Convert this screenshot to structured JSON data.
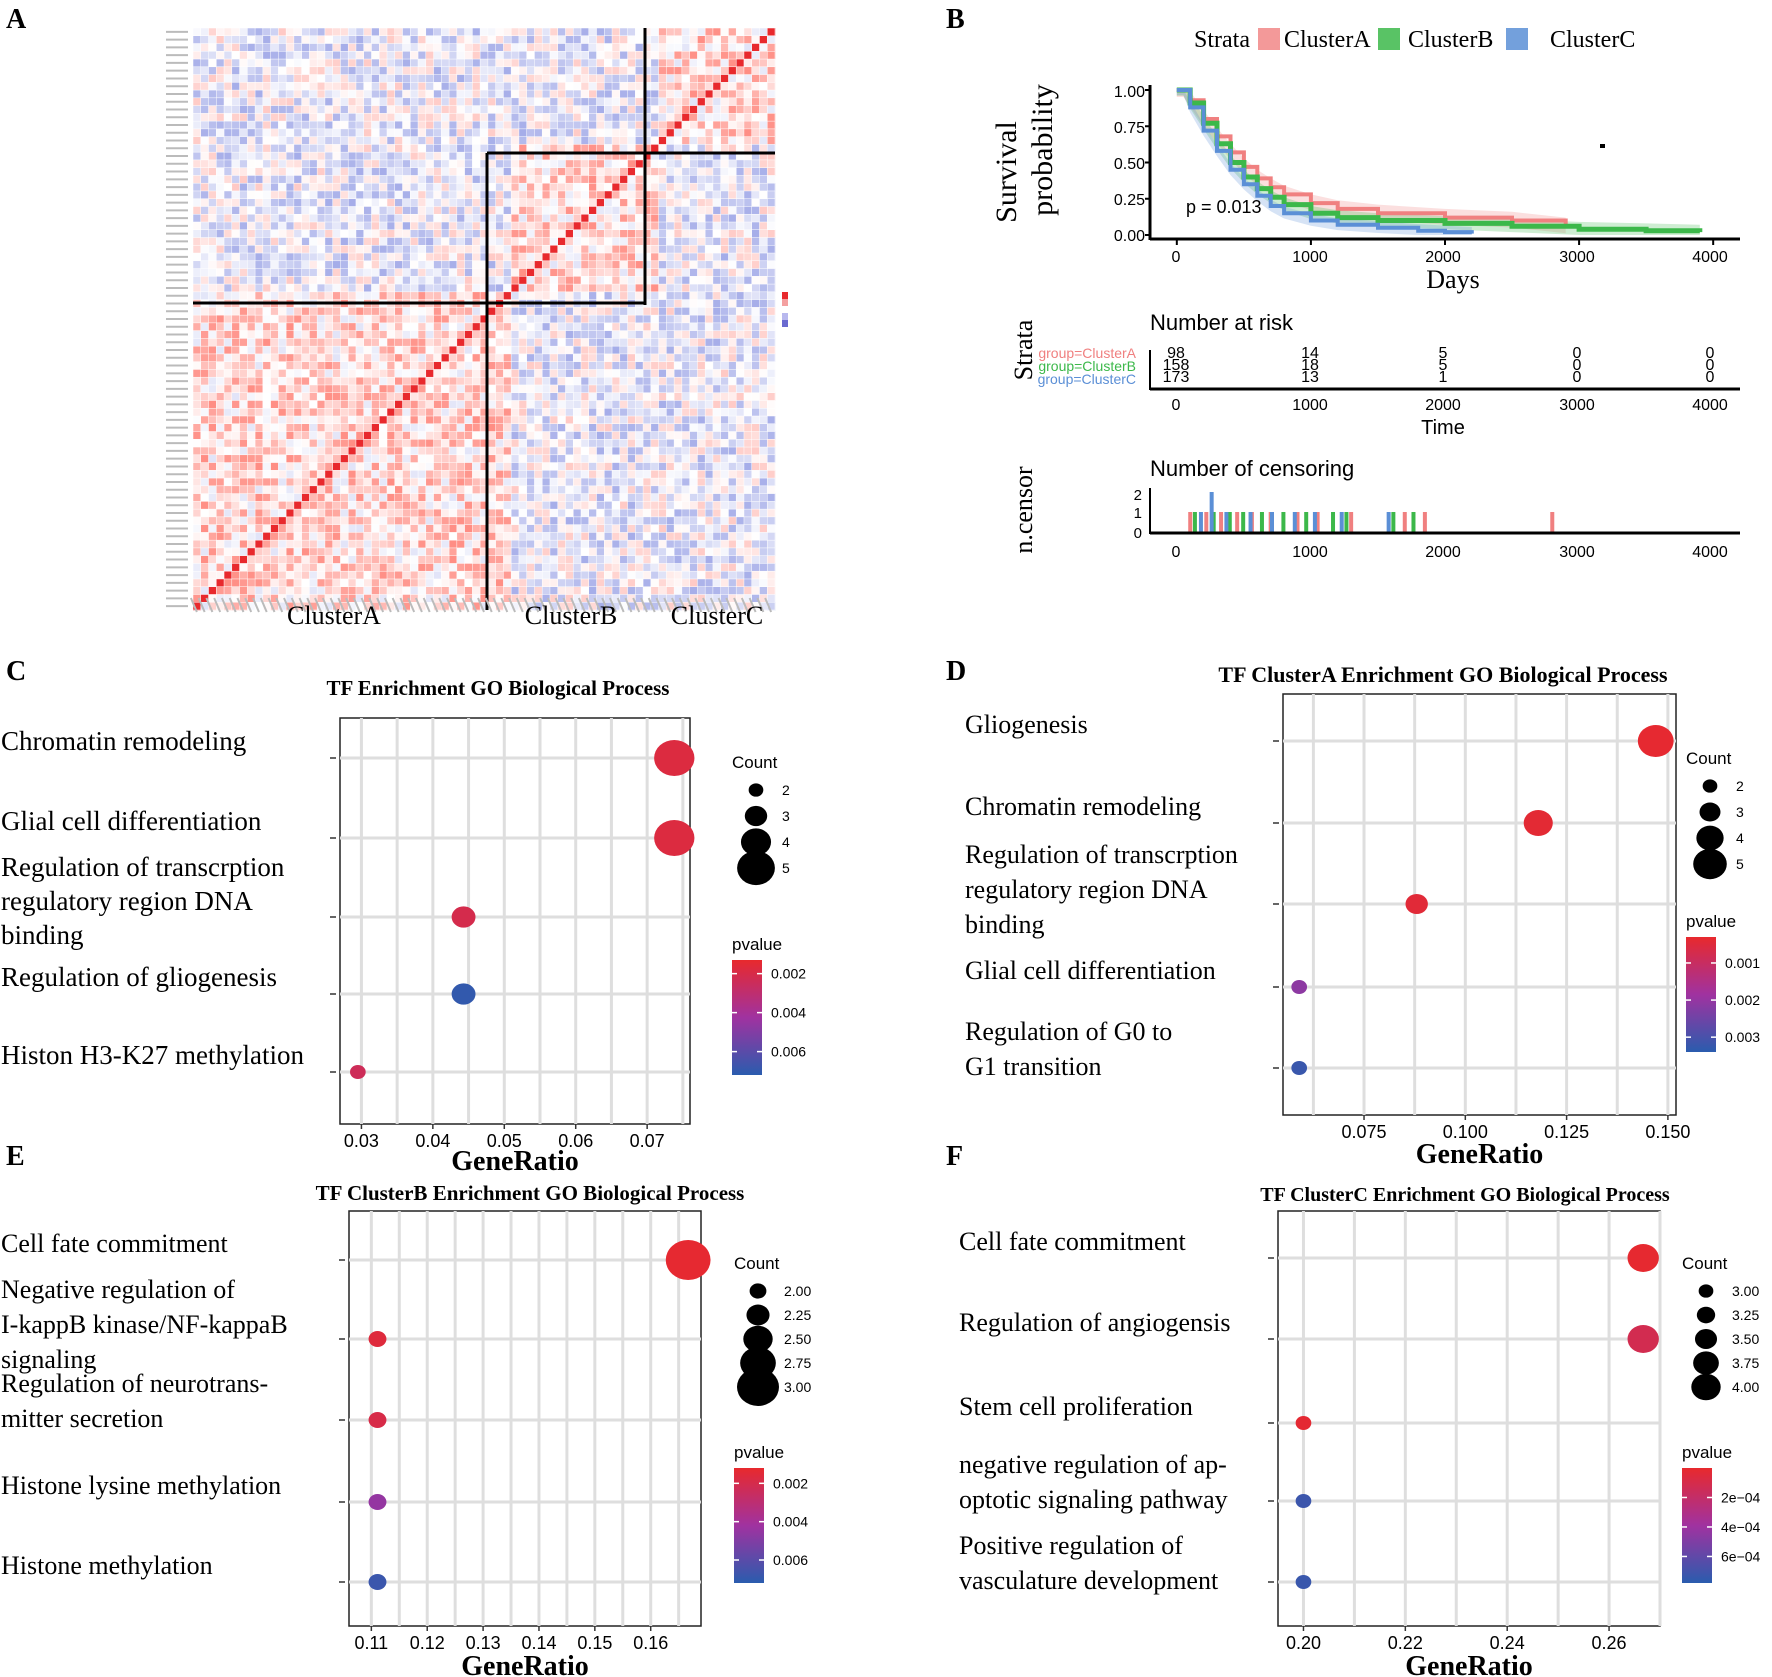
{
  "panels": {
    "A": {
      "letter": "A",
      "cluster_labels": [
        "ClusterA",
        "ClusterB",
        "ClusterC"
      ]
    },
    "B": {
      "letter": "B",
      "legend": {
        "title": "Strata",
        "items": [
          "ClusterA",
          "ClusterB",
          "ClusterC"
        ]
      },
      "ylabel_line1": "Survival",
      "ylabel_line2": "probability",
      "xlabel": "Days",
      "yticks": [
        "1.00",
        "0.75",
        "0.50",
        "0.25",
        "0.00"
      ],
      "xticks": [
        "0",
        "1000",
        "2000",
        "3000",
        "4000"
      ],
      "pvalue": "p = 0.013",
      "risk_title": "Number at risk",
      "risk_ylabel": "Strata",
      "risk_xlabel": "Time",
      "risk_groups": [
        "group=ClusterA",
        "group=ClusterB",
        "group=ClusterC"
      ],
      "risk_rows": [
        [
          "98",
          "14",
          "5",
          "0",
          "0"
        ],
        [
          "158",
          "18",
          "5",
          "0",
          "0"
        ],
        [
          "173",
          "13",
          "1",
          "0",
          "0"
        ]
      ],
      "censor_title": "Number of censoring",
      "censor_ylabel": "n.censor",
      "censor_yticks": [
        "2",
        "1",
        "0"
      ]
    },
    "colors": {
      "clusterA": "#f08080",
      "clusterB": "#3cb84a",
      "clusterC": "#5b8fd6",
      "high": "#e8292d",
      "low": "#2a5cae"
    }
  },
  "chart_data": [
    {
      "panel": "A",
      "type": "heatmap",
      "title": "",
      "row_groups": [
        "ClusterA",
        "ClusterB",
        "ClusterC"
      ],
      "note": "correlation heatmap of transcription factors, diagonal = 1"
    },
    {
      "panel": "B",
      "type": "line",
      "title": "",
      "xlabel": "Days",
      "ylabel": "Survival probability",
      "xlim": [
        0,
        4000
      ],
      "ylim": [
        0,
        1
      ],
      "series": [
        {
          "name": "ClusterA",
          "x": [
            0,
            50,
            100,
            200,
            300,
            400,
            500,
            600,
            700,
            800,
            1000,
            1200,
            1500,
            2000,
            2500,
            2900
          ],
          "y": [
            1,
            1,
            0.93,
            0.8,
            0.68,
            0.57,
            0.47,
            0.39,
            0.33,
            0.28,
            0.22,
            0.18,
            0.15,
            0.12,
            0.1,
            0.06
          ]
        },
        {
          "name": "ClusterB",
          "x": [
            0,
            50,
            100,
            200,
            300,
            400,
            500,
            600,
            700,
            800,
            1000,
            1200,
            1500,
            2000,
            2500,
            3000,
            3500,
            3900
          ],
          "y": [
            1,
            1,
            0.91,
            0.77,
            0.63,
            0.5,
            0.4,
            0.32,
            0.26,
            0.21,
            0.15,
            0.12,
            0.1,
            0.08,
            0.06,
            0.04,
            0.03,
            0.02
          ]
        },
        {
          "name": "ClusterC",
          "x": [
            0,
            50,
            100,
            200,
            300,
            400,
            500,
            600,
            700,
            800,
            1000,
            1200,
            1500,
            1800,
            2000,
            2200
          ],
          "y": [
            1,
            1,
            0.88,
            0.72,
            0.58,
            0.45,
            0.35,
            0.27,
            0.2,
            0.15,
            0.1,
            0.07,
            0.05,
            0.03,
            0.02,
            0.01
          ]
        }
      ]
    },
    {
      "panel": "B",
      "type": "bar",
      "title": "Number of censoring",
      "ylabel": "n.censor",
      "ylim": [
        0,
        2
      ],
      "series": [
        {
          "name": "ClusterA",
          "x": [
            100,
            220,
            330,
            450,
            560,
            700,
            900,
            1050,
            1300,
            1700,
            1850,
            2800
          ],
          "values": [
            1,
            1,
            1,
            1,
            1,
            1,
            1,
            1,
            1,
            1,
            1,
            1
          ]
        },
        {
          "name": "ClusterB",
          "x": [
            120,
            260,
            380,
            480,
            620,
            780,
            950,
            1150,
            1250,
            1600,
            1750
          ],
          "values": [
            1,
            1,
            1,
            1,
            1,
            1,
            1,
            1,
            1,
            1,
            1
          ]
        },
        {
          "name": "ClusterC",
          "x": [
            150,
            230,
            340,
            520,
            680,
            850,
            1000,
            1200,
            1550
          ],
          "values": [
            1,
            2,
            1,
            1,
            1,
            1,
            1,
            1,
            1
          ]
        }
      ]
    },
    {
      "panel": "C",
      "letter": "C",
      "type": "scatter",
      "title": "TF Enrichment GO Biological Process",
      "xlabel": "GeneRatio",
      "xlim": [
        0.027,
        0.076
      ],
      "xticks": [
        0.03,
        0.04,
        0.05,
        0.06,
        0.07
      ],
      "xtick_labels": [
        "0.03",
        "0.04",
        "0.05",
        "0.06",
        "0.07"
      ],
      "categories": [
        [
          "Chromatin remodeling"
        ],
        [
          "Glial cell differentiation"
        ],
        [
          "Regulation of transcrption",
          "regulatory region DNA",
          "binding"
        ],
        [
          "Regulation of gliogenesis"
        ],
        [
          "Histon H3-K27 methylation"
        ]
      ],
      "x": [
        0.0738,
        0.0738,
        0.0443,
        0.0443,
        0.0295
      ],
      "count": [
        5,
        5,
        3,
        3,
        2
      ],
      "pvalue": [
        0.0018,
        0.0018,
        0.0021,
        0.007,
        0.0024
      ],
      "size_legend": {
        "title": "Count",
        "values": [
          2,
          3,
          4,
          5
        ],
        "labels": [
          "2",
          "3",
          "4",
          "5"
        ]
      },
      "color_legend": {
        "title": "pvalue",
        "labels": [
          "0.002",
          "0.004",
          "0.006"
        ],
        "values": [
          0.002,
          0.004,
          0.006
        ],
        "range": [
          0.0013,
          0.0072
        ]
      }
    },
    {
      "panel": "D",
      "letter": "D",
      "type": "scatter",
      "title": "TF ClusterA Enrichment GO Biological Process",
      "xlabel": "GeneRatio",
      "xlim": [
        0.055,
        0.152
      ],
      "xticks": [
        0.075,
        0.1,
        0.125,
        0.15
      ],
      "xtick_labels": [
        "0.075",
        "0.100",
        "0.125",
        "0.150"
      ],
      "categories": [
        [
          "Gliogenesis"
        ],
        [
          "Chromatin remodeling"
        ],
        [
          "Regulation of transcrption",
          "regulatory region DNA",
          "binding"
        ],
        [
          "Glial cell differentiation"
        ],
        [
          "Regulation of G0 to",
          "G1 transition"
        ]
      ],
      "x": [
        0.147,
        0.118,
        0.088,
        0.059,
        0.059
      ],
      "count": [
        5,
        4,
        3,
        2,
        2
      ],
      "pvalue": [
        0.00035,
        0.0004,
        0.00045,
        0.0021,
        0.0032
      ],
      "size_legend": {
        "title": "Count",
        "values": [
          2,
          3,
          4,
          5
        ],
        "labels": [
          "2",
          "3",
          "4",
          "5"
        ]
      },
      "color_legend": {
        "title": "pvalue",
        "labels": [
          "0.001",
          "0.002",
          "0.003"
        ],
        "values": [
          0.001,
          0.002,
          0.003
        ],
        "range": [
          0.0003,
          0.0034
        ]
      }
    },
    {
      "panel": "E",
      "letter": "E",
      "type": "scatter",
      "title": "TF ClusterB Enrichment GO Biological Process",
      "xlabel": "GeneRatio",
      "xlim": [
        0.106,
        0.169
      ],
      "xticks": [
        0.11,
        0.12,
        0.13,
        0.14,
        0.15,
        0.16
      ],
      "xtick_labels": [
        "0.11",
        "0.12",
        "0.13",
        "0.14",
        "0.15",
        "0.16"
      ],
      "categories": [
        [
          "Cell fate commitment"
        ],
        [
          "Negative regulation of",
          "I-kappB kinase/NF-kappaB",
          "signaling"
        ],
        [
          "Regulation of  neurotrans-",
          "mitter secretion"
        ],
        [
          "Histone lysine  methylation"
        ],
        [
          "Histone methylation"
        ]
      ],
      "x": [
        0.1667,
        0.1111,
        0.1111,
        0.1111,
        0.1111
      ],
      "count": [
        3,
        2,
        2,
        2,
        2
      ],
      "pvalue": [
        0.0013,
        0.0016,
        0.0019,
        0.0045,
        0.0068
      ],
      "size_legend": {
        "title": "Count",
        "values": [
          2,
          2.25,
          2.5,
          2.75,
          3
        ],
        "labels": [
          "2.00",
          "2.25",
          "2.50",
          "2.75",
          "3.00"
        ]
      },
      "color_legend": {
        "title": "pvalue",
        "labels": [
          "0.002",
          "0.004",
          "0.006"
        ],
        "values": [
          0.002,
          0.004,
          0.006
        ],
        "range": [
          0.0012,
          0.0072
        ]
      }
    },
    {
      "panel": "F",
      "letter": "F",
      "type": "scatter",
      "title": "TF  ClusterC Enrichment GO Biological Process",
      "xlabel": "GeneRatio",
      "xlim": [
        0.195,
        0.27
      ],
      "xticks": [
        0.2,
        0.22,
        0.24,
        0.26
      ],
      "xtick_labels": [
        "0.20",
        "0.22",
        "0.24",
        "0.26"
      ],
      "categories": [
        [
          "Cell fate commitment"
        ],
        [
          "Regulation of angiogensis"
        ],
        [
          "Stem cell proliferation"
        ],
        [
          "negative regulation of ap-",
          "optotic signaling pathway"
        ],
        [
          "Positive regulation of",
          "vasculature development"
        ]
      ],
      "x": [
        0.2667,
        0.2667,
        0.2,
        0.2,
        0.2
      ],
      "count": [
        4,
        4,
        3,
        3,
        3
      ],
      "pvalue": [
        1e-05,
        0.00012,
        2e-05,
        0.00072,
        0.00073
      ],
      "size_legend": {
        "title": "Count",
        "values": [
          3,
          3.25,
          3.5,
          3.75,
          4
        ],
        "labels": [
          "3.00",
          "3.25",
          "3.50",
          "3.75",
          "4.00"
        ]
      },
      "color_legend": {
        "title": "pvalue",
        "labels": [
          "2e−04",
          "4e−04",
          "6e−04"
        ],
        "values": [
          0.0002,
          0.0004,
          0.0006
        ],
        "range": [
          0.0,
          0.00078
        ]
      }
    }
  ]
}
